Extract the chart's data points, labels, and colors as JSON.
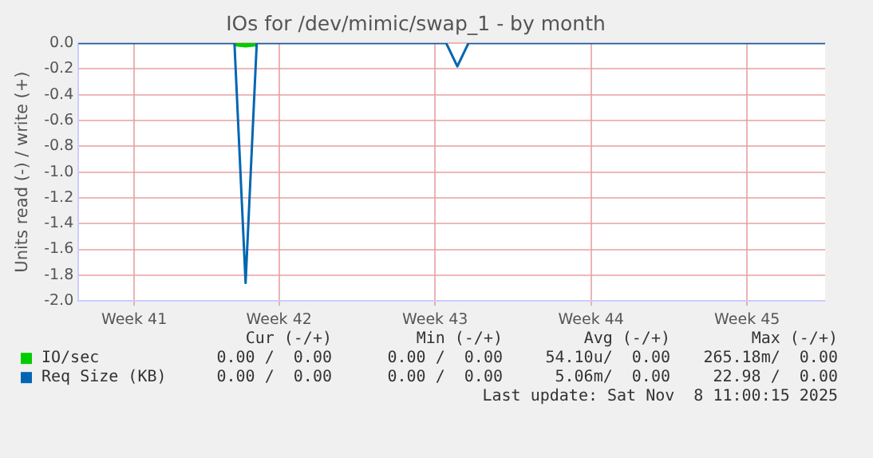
{
  "chart_data": {
    "type": "line",
    "title": "IOs for /dev/mimic/swap_1 - by month",
    "ylabel": "Units read (-) / write (+)",
    "categories": [
      null,
      null,
      null,
      null,
      null,
      "Week 41",
      null,
      null,
      null,
      null,
      null,
      null,
      null,
      null,
      null,
      null,
      null,
      null,
      "Week 42",
      null,
      null,
      null,
      null,
      null,
      null,
      null,
      null,
      null,
      null,
      null,
      null,
      null,
      "Week 43",
      null,
      null,
      null,
      null,
      null,
      null,
      null,
      null,
      null,
      null,
      null,
      null,
      null,
      "Week 44",
      null,
      null,
      null,
      null,
      null,
      null,
      null,
      null,
      null,
      null,
      null,
      null,
      null,
      "Week 45",
      null,
      null,
      null,
      null,
      null,
      null,
      null
    ],
    "series": [
      {
        "name": "IO/sec",
        "color": "#00cc00",
        "values": [
          null,
          null,
          null,
          null,
          null,
          null,
          null,
          null,
          null,
          null,
          null,
          null,
          null,
          null,
          0,
          -0.01,
          0,
          null,
          null,
          null,
          null,
          null,
          null,
          null,
          null,
          null,
          null,
          null,
          null,
          null,
          null,
          null,
          null,
          null,
          null,
          null,
          null,
          null,
          null,
          null,
          null,
          null,
          null,
          null,
          null,
          null,
          null,
          null,
          null,
          null,
          null,
          null,
          null,
          null,
          null,
          null,
          null,
          null,
          null,
          null,
          null,
          null,
          null,
          null,
          null,
          null,
          null,
          null
        ]
      },
      {
        "name": "Req Size (KB)",
        "color": "#0066b3",
        "values": [
          0,
          0,
          0,
          0,
          0,
          0,
          0,
          0,
          0,
          0,
          0,
          0,
          0,
          0,
          0,
          -1.86,
          0,
          0,
          0,
          0,
          0,
          0,
          0,
          0,
          0,
          0,
          0,
          0,
          0,
          0,
          0,
          0,
          0,
          0,
          -0.18,
          0,
          0,
          0,
          0,
          0,
          0,
          0,
          0,
          0,
          0,
          0,
          0,
          0,
          0,
          0,
          0,
          0,
          0,
          0,
          0,
          0,
          0,
          0,
          0,
          0,
          0,
          0,
          0,
          0,
          0,
          0,
          0,
          0
        ]
      }
    ],
    "ylim": [
      -2,
      0
    ],
    "yticks": [
      {
        "value": -2,
        "label": "-2.0"
      },
      {
        "value": -1.8,
        "label": "-1.8"
      },
      {
        "value": -1.6,
        "label": "-1.6"
      },
      {
        "value": -1.4,
        "label": "-1.4"
      },
      {
        "value": -1.2,
        "label": "-1.2"
      },
      {
        "value": -1,
        "label": "-1.0"
      },
      {
        "value": -0.8,
        "label": "-0.8"
      },
      {
        "value": -0.6,
        "label": "-0.6"
      },
      {
        "value": -0.4,
        "label": "-0.4"
      },
      {
        "value": -0.2,
        "label": "-0.2"
      },
      {
        "value": 0,
        "label": "0.0"
      }
    ],
    "grid": true,
    "legend": "bottom",
    "marker": "none",
    "line_style": "solid",
    "annotations": [
      "Cur (-/+)",
      "Min (-/+)",
      "Avg (-/+)",
      "Max (-/+)",
      "0.00 /  0.00",
      "0.00 /  0.00",
      "54.10u/  0.00",
      "265.18m/  0.00",
      "0.00 /  0.00",
      "0.00 /  0.00",
      "5.06m/  0.00",
      "22.98 /  0.00",
      "Last update: Sat Nov  8 11:00:15 2025"
    ]
  }
}
